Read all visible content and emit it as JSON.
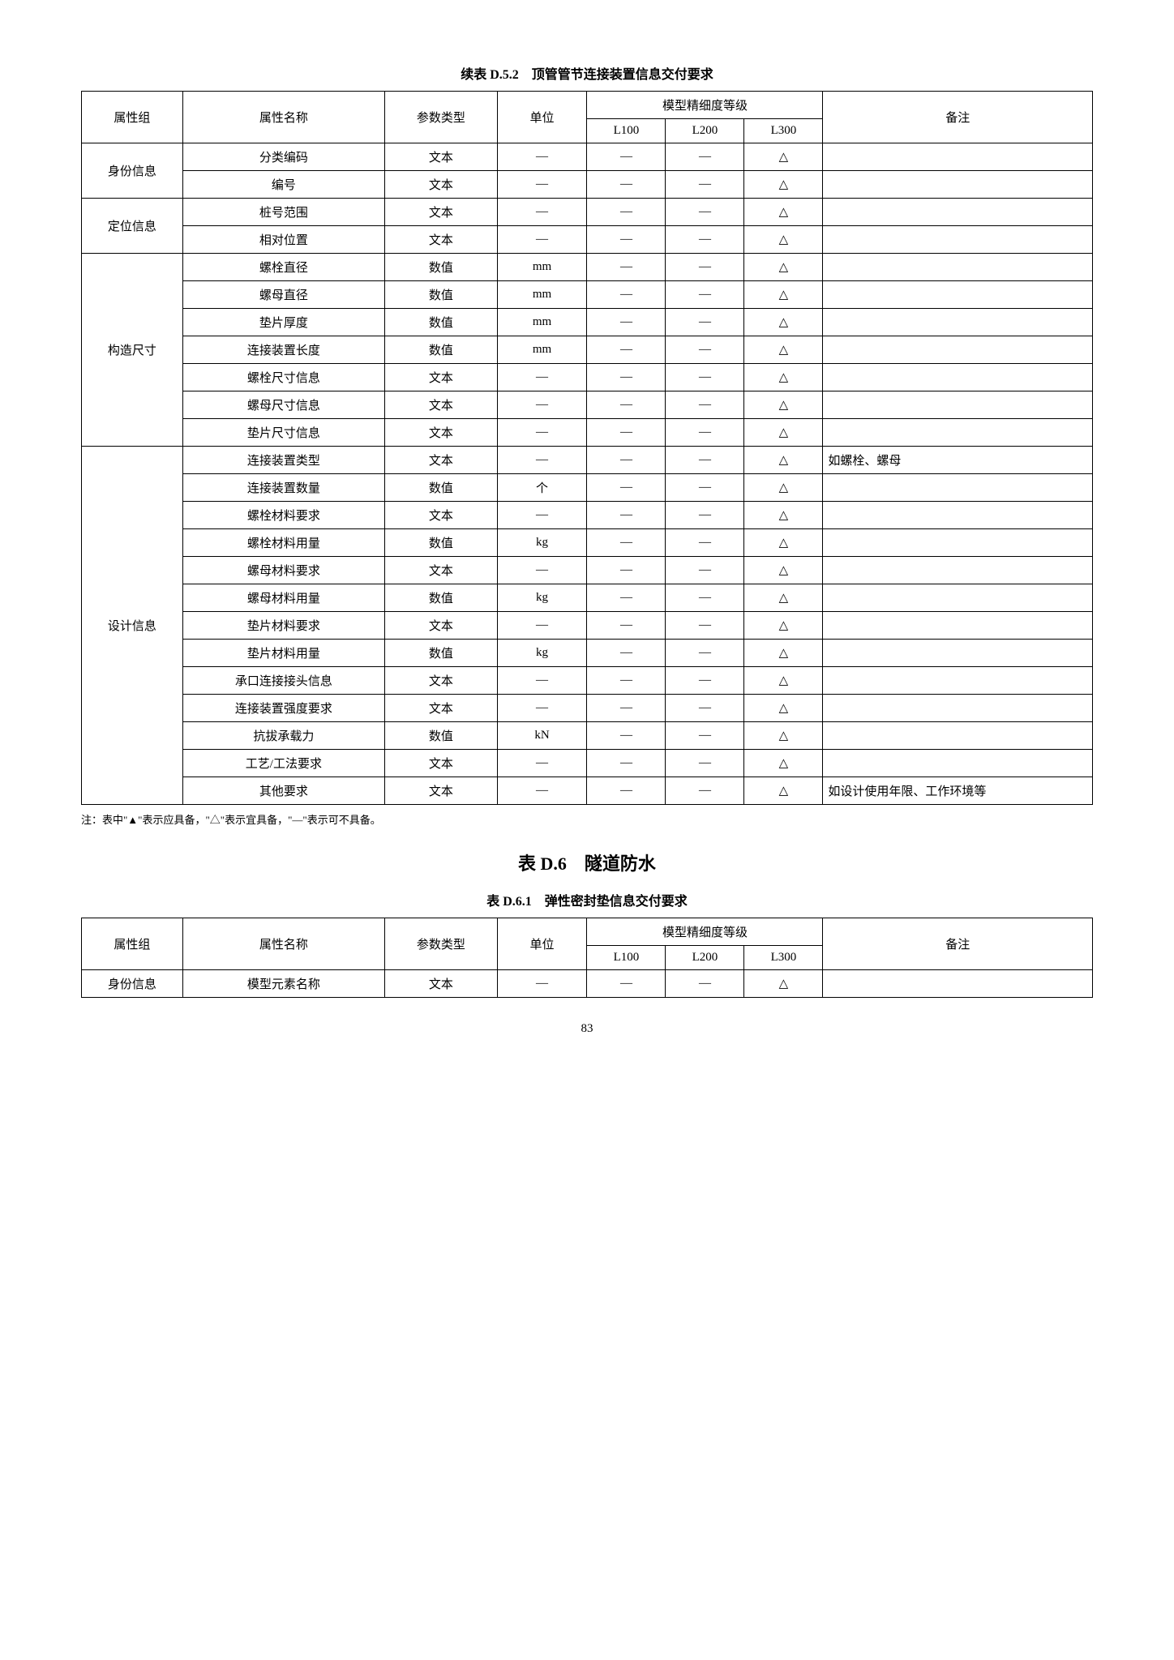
{
  "table1": {
    "caption": "续表 D.5.2　顶管管节连接装置信息交付要求",
    "headers": {
      "group": "属性组",
      "name": "属性名称",
      "type": "参数类型",
      "unit": "单位",
      "level_group": "模型精细度等级",
      "l100": "L100",
      "l200": "L200",
      "l300": "L300",
      "remark": "备注"
    },
    "groups": [
      {
        "label": "身份信息",
        "rows": [
          {
            "name": "分类编码",
            "type": "文本",
            "unit": "—",
            "l100": "—",
            "l200": "—",
            "l300": "△",
            "remark": ""
          },
          {
            "name": "编号",
            "type": "文本",
            "unit": "—",
            "l100": "—",
            "l200": "—",
            "l300": "△",
            "remark": ""
          }
        ]
      },
      {
        "label": "定位信息",
        "rows": [
          {
            "name": "桩号范围",
            "type": "文本",
            "unit": "—",
            "l100": "—",
            "l200": "—",
            "l300": "△",
            "remark": ""
          },
          {
            "name": "相对位置",
            "type": "文本",
            "unit": "—",
            "l100": "—",
            "l200": "—",
            "l300": "△",
            "remark": ""
          }
        ]
      },
      {
        "label": "构造尺寸",
        "rows": [
          {
            "name": "螺栓直径",
            "type": "数值",
            "unit": "mm",
            "l100": "—",
            "l200": "—",
            "l300": "△",
            "remark": ""
          },
          {
            "name": "螺母直径",
            "type": "数值",
            "unit": "mm",
            "l100": "—",
            "l200": "—",
            "l300": "△",
            "remark": ""
          },
          {
            "name": "垫片厚度",
            "type": "数值",
            "unit": "mm",
            "l100": "—",
            "l200": "—",
            "l300": "△",
            "remark": ""
          },
          {
            "name": "连接装置长度",
            "type": "数值",
            "unit": "mm",
            "l100": "—",
            "l200": "—",
            "l300": "△",
            "remark": ""
          },
          {
            "name": "螺栓尺寸信息",
            "type": "文本",
            "unit": "—",
            "l100": "—",
            "l200": "—",
            "l300": "△",
            "remark": ""
          },
          {
            "name": "螺母尺寸信息",
            "type": "文本",
            "unit": "—",
            "l100": "—",
            "l200": "—",
            "l300": "△",
            "remark": ""
          },
          {
            "name": "垫片尺寸信息",
            "type": "文本",
            "unit": "—",
            "l100": "—",
            "l200": "—",
            "l300": "△",
            "remark": ""
          }
        ]
      },
      {
        "label": "设计信息",
        "rows": [
          {
            "name": "连接装置类型",
            "type": "文本",
            "unit": "—",
            "l100": "—",
            "l200": "—",
            "l300": "△",
            "remark": "如螺栓、螺母"
          },
          {
            "name": "连接装置数量",
            "type": "数值",
            "unit": "个",
            "l100": "—",
            "l200": "—",
            "l300": "△",
            "remark": ""
          },
          {
            "name": "螺栓材料要求",
            "type": "文本",
            "unit": "—",
            "l100": "—",
            "l200": "—",
            "l300": "△",
            "remark": ""
          },
          {
            "name": "螺栓材料用量",
            "type": "数值",
            "unit": "kg",
            "l100": "—",
            "l200": "—",
            "l300": "△",
            "remark": ""
          },
          {
            "name": "螺母材料要求",
            "type": "文本",
            "unit": "—",
            "l100": "—",
            "l200": "—",
            "l300": "△",
            "remark": ""
          },
          {
            "name": "螺母材料用量",
            "type": "数值",
            "unit": "kg",
            "l100": "—",
            "l200": "—",
            "l300": "△",
            "remark": ""
          },
          {
            "name": "垫片材料要求",
            "type": "文本",
            "unit": "—",
            "l100": "—",
            "l200": "—",
            "l300": "△",
            "remark": ""
          },
          {
            "name": "垫片材料用量",
            "type": "数值",
            "unit": "kg",
            "l100": "—",
            "l200": "—",
            "l300": "△",
            "remark": ""
          },
          {
            "name": "承口连接接头信息",
            "type": "文本",
            "unit": "—",
            "l100": "—",
            "l200": "—",
            "l300": "△",
            "remark": ""
          },
          {
            "name": "连接装置强度要求",
            "type": "文本",
            "unit": "—",
            "l100": "—",
            "l200": "—",
            "l300": "△",
            "remark": ""
          },
          {
            "name": "抗拔承载力",
            "type": "数值",
            "unit": "kN",
            "l100": "—",
            "l200": "—",
            "l300": "△",
            "remark": ""
          },
          {
            "name": "工艺/工法要求",
            "type": "文本",
            "unit": "—",
            "l100": "—",
            "l200": "—",
            "l300": "△",
            "remark": ""
          },
          {
            "name": "其他要求",
            "type": "文本",
            "unit": "—",
            "l100": "—",
            "l200": "—",
            "l300": "△",
            "remark": "如设计使用年限、工作环境等"
          }
        ]
      }
    ]
  },
  "note_text": "注：表中\"▲\"表示应具备，\"△\"表示宜具备，\"—\"表示可不具备。",
  "section_title": "表 D.6　隧道防水",
  "table2": {
    "caption": "表 D.6.1　弹性密封垫信息交付要求",
    "headers": {
      "group": "属性组",
      "name": "属性名称",
      "type": "参数类型",
      "unit": "单位",
      "level_group": "模型精细度等级",
      "l100": "L100",
      "l200": "L200",
      "l300": "L300",
      "remark": "备注"
    },
    "rows": [
      {
        "group": "身份信息",
        "name": "模型元素名称",
        "type": "文本",
        "unit": "—",
        "l100": "—",
        "l200": "—",
        "l300": "△",
        "remark": ""
      }
    ]
  },
  "page_number": "83"
}
